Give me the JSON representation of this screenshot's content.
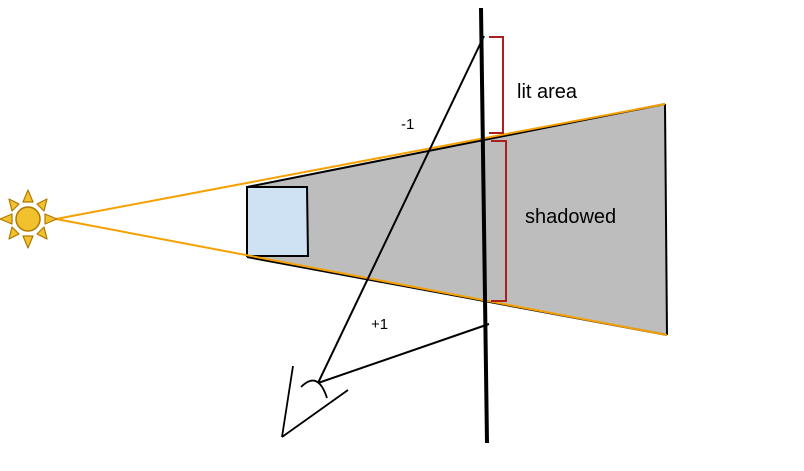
{
  "labels": {
    "lit_area": "lit area",
    "shadowed": "shadowed",
    "minus_one": "-1",
    "plus_one": "+1"
  },
  "colors": {
    "light_ray": "#f5a000",
    "shadow_fill": "#bdbdbd",
    "occluder_fill": "#cfe2f3",
    "bracket": "#aa1f1f",
    "sun_fill": "#f2c12e",
    "sun_stroke": "#b07800",
    "line": "#000000"
  },
  "icons": {
    "sun": "sun-icon",
    "eye": "eye-icon"
  }
}
